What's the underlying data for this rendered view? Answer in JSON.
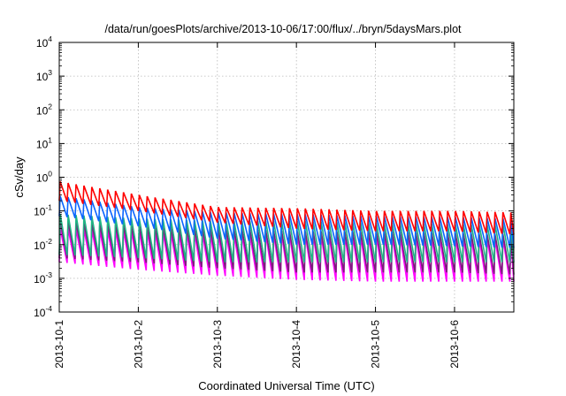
{
  "chart_data": {
    "type": "line",
    "title": "/data/run/goesPlots/archive/2013-10-06/17:00/flux/../bryn/5daysMars.plot",
    "xlabel": "Coordinated Universal Time (UTC)",
    "ylabel": "cSv/day",
    "yscale": "log",
    "ylim": [
      0.0001,
      10000
    ],
    "yticks": [
      {
        "mant": "10",
        "exp": "-4"
      },
      {
        "mant": "10",
        "exp": "-3"
      },
      {
        "mant": "10",
        "exp": "-2"
      },
      {
        "mant": "10",
        "exp": "-1"
      },
      {
        "mant": "10",
        "exp": "0"
      },
      {
        "mant": "10",
        "exp": "1"
      },
      {
        "mant": "10",
        "exp": "2"
      },
      {
        "mant": "10",
        "exp": "3"
      },
      {
        "mant": "10",
        "exp": "4"
      }
    ],
    "xlim": [
      0,
      5.75
    ],
    "xticks": [
      {
        "label": "2013-10-1",
        "value": 0
      },
      {
        "label": "2013-10-2",
        "value": 1
      },
      {
        "label": "2013-10-3",
        "value": 2
      },
      {
        "label": "2013-10-4",
        "value": 3
      },
      {
        "label": "2013-10-5",
        "value": 4
      },
      {
        "label": "2013-10-6",
        "value": 5
      }
    ],
    "grid": true,
    "sawtooth_period_days": 0.1,
    "series": [
      {
        "color": "#ff0000",
        "peaks": [
          [
            0,
            0.75
          ],
          [
            1,
            0.3
          ],
          [
            2,
            0.13
          ],
          [
            3,
            0.12
          ],
          [
            4,
            0.1
          ],
          [
            5,
            0.1
          ],
          [
            5.75,
            0.09
          ]
        ],
        "troughs": [
          [
            0,
            0.2
          ],
          [
            1,
            0.1
          ],
          [
            2,
            0.045
          ],
          [
            3,
            0.03
          ],
          [
            4,
            0.025
          ],
          [
            5,
            0.025
          ],
          [
            5.75,
            0.02
          ]
        ]
      },
      {
        "color": "#0a64ff",
        "peaks": [
          [
            0,
            0.28
          ],
          [
            1,
            0.13
          ],
          [
            2,
            0.09
          ],
          [
            3,
            0.08
          ],
          [
            4,
            0.07
          ],
          [
            5,
            0.065
          ],
          [
            5.75,
            0.06
          ]
        ],
        "troughs": [
          [
            0,
            0.07
          ],
          [
            1,
            0.035
          ],
          [
            2,
            0.015
          ],
          [
            3,
            0.01
          ],
          [
            4,
            0.01
          ],
          [
            5,
            0.009
          ],
          [
            5.75,
            0.008
          ]
        ]
      },
      {
        "color": "#1fb584",
        "peaks": [
          [
            0,
            0.08
          ],
          [
            1,
            0.06
          ],
          [
            2,
            0.05
          ],
          [
            3,
            0.05
          ],
          [
            4,
            0.045
          ],
          [
            5,
            0.04
          ],
          [
            5.75,
            0.04
          ]
        ],
        "troughs": [
          [
            0,
            0.005
          ],
          [
            1,
            0.004
          ],
          [
            2,
            0.003
          ],
          [
            3,
            0.003
          ],
          [
            4,
            0.003
          ],
          [
            5,
            0.003
          ],
          [
            5.75,
            0.003
          ]
        ]
      },
      {
        "color": "#7a1f7a",
        "peaks": [
          [
            0,
            0.05
          ],
          [
            1,
            0.035
          ],
          [
            2,
            0.03
          ],
          [
            3,
            0.025
          ],
          [
            4,
            0.025
          ],
          [
            5,
            0.022
          ],
          [
            5.75,
            0.02
          ]
        ],
        "troughs": [
          [
            0,
            0.004
          ],
          [
            1,
            0.003
          ],
          [
            2,
            0.002
          ],
          [
            3,
            0.0015
          ],
          [
            4,
            0.0015
          ],
          [
            5,
            0.0015
          ],
          [
            5.75,
            0.0013
          ]
        ]
      },
      {
        "color": "#ff00ff",
        "peaks": [
          [
            0,
            0.03
          ],
          [
            1,
            0.025
          ],
          [
            2,
            0.02
          ],
          [
            3,
            0.02
          ],
          [
            4,
            0.018
          ],
          [
            5,
            0.016
          ],
          [
            5.75,
            0.015
          ]
        ],
        "troughs": [
          [
            0,
            0.003
          ],
          [
            1,
            0.0018
          ],
          [
            2,
            0.0012
          ],
          [
            3,
            0.0009
          ],
          [
            4,
            0.0008
          ],
          [
            5,
            0.0008
          ],
          [
            5.75,
            0.0008
          ]
        ]
      }
    ]
  }
}
